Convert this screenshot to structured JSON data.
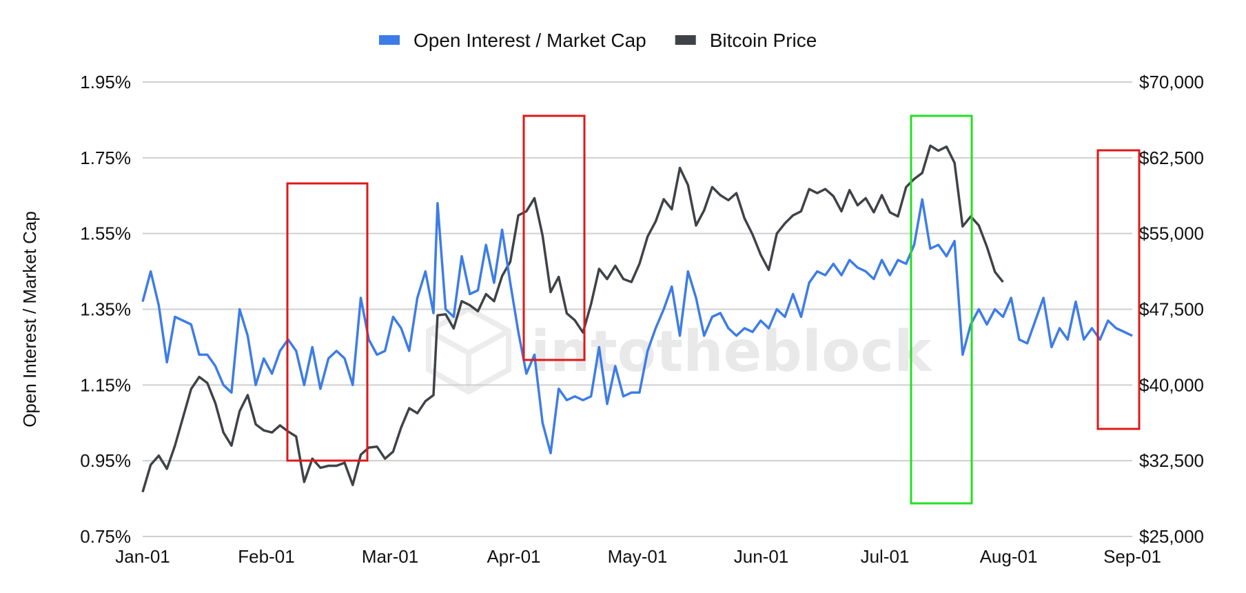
{
  "chart_data": {
    "type": "line",
    "title": "",
    "xlabel": "",
    "ylabel": "Open Interest / Market Cap",
    "watermark": "intotheblock",
    "x_ticks": [
      "Jan-01",
      "Feb-01",
      "Mar-01",
      "Apr-01",
      "May-01",
      "Jun-01",
      "Jul-01",
      "Aug-01",
      "Sep-01"
    ],
    "x_range_days": [
      0,
      245
    ],
    "y_left": {
      "ticks": [
        "0.75%",
        "0.95%",
        "1.15%",
        "1.35%",
        "1.55%",
        "1.75%",
        "1.95%"
      ],
      "range": [
        0.75,
        1.95
      ]
    },
    "y_right": {
      "ticks": [
        "$25,000",
        "$32,500",
        "$40,000",
        "$47,500",
        "$55,000",
        "$62,500",
        "$70,000"
      ],
      "range": [
        25000,
        70000
      ]
    },
    "grid": true,
    "legend_position": "top-center",
    "series": [
      {
        "name": "Open Interest / Market Cap",
        "axis": "left",
        "color": "#3d7ce8",
        "points": [
          [
            0,
            1.37
          ],
          [
            2,
            1.45
          ],
          [
            4,
            1.36
          ],
          [
            6,
            1.21
          ],
          [
            8,
            1.33
          ],
          [
            10,
            1.32
          ],
          [
            12,
            1.31
          ],
          [
            14,
            1.23
          ],
          [
            16,
            1.23
          ],
          [
            18,
            1.2
          ],
          [
            20,
            1.15
          ],
          [
            22,
            1.13
          ],
          [
            24,
            1.35
          ],
          [
            26,
            1.28
          ],
          [
            28,
            1.15
          ],
          [
            30,
            1.22
          ],
          [
            32,
            1.18
          ],
          [
            34,
            1.24
          ],
          [
            36,
            1.27
          ],
          [
            38,
            1.24
          ],
          [
            40,
            1.15
          ],
          [
            42,
            1.25
          ],
          [
            44,
            1.14
          ],
          [
            46,
            1.22
          ],
          [
            48,
            1.24
          ],
          [
            50,
            1.22
          ],
          [
            52,
            1.15
          ],
          [
            54,
            1.38
          ],
          [
            56,
            1.27
          ],
          [
            58,
            1.23
          ],
          [
            60,
            1.24
          ],
          [
            62,
            1.33
          ],
          [
            64,
            1.3
          ],
          [
            66,
            1.24
          ],
          [
            68,
            1.38
          ],
          [
            70,
            1.45
          ],
          [
            72,
            1.34
          ],
          [
            73,
            1.63
          ],
          [
            75,
            1.35
          ],
          [
            77,
            1.33
          ],
          [
            79,
            1.49
          ],
          [
            81,
            1.39
          ],
          [
            83,
            1.4
          ],
          [
            85,
            1.52
          ],
          [
            87,
            1.42
          ],
          [
            89,
            1.56
          ],
          [
            91,
            1.42
          ],
          [
            93,
            1.29
          ],
          [
            95,
            1.18
          ],
          [
            97,
            1.23
          ],
          [
            99,
            1.05
          ],
          [
            101,
            0.97
          ],
          [
            103,
            1.14
          ],
          [
            105,
            1.11
          ],
          [
            107,
            1.12
          ],
          [
            109,
            1.11
          ],
          [
            111,
            1.12
          ],
          [
            113,
            1.25
          ],
          [
            115,
            1.1
          ],
          [
            117,
            1.2
          ],
          [
            119,
            1.12
          ],
          [
            121,
            1.13
          ],
          [
            123,
            1.13
          ],
          [
            125,
            1.24
          ],
          [
            127,
            1.3
          ],
          [
            129,
            1.35
          ],
          [
            131,
            1.41
          ],
          [
            133,
            1.28
          ],
          [
            135,
            1.45
          ],
          [
            137,
            1.38
          ],
          [
            139,
            1.28
          ],
          [
            141,
            1.33
          ],
          [
            143,
            1.34
          ],
          [
            145,
            1.3
          ],
          [
            147,
            1.28
          ],
          [
            149,
            1.3
          ],
          [
            151,
            1.29
          ],
          [
            153,
            1.32
          ],
          [
            155,
            1.3
          ],
          [
            157,
            1.35
          ],
          [
            159,
            1.33
          ],
          [
            161,
            1.39
          ],
          [
            163,
            1.33
          ],
          [
            165,
            1.42
          ],
          [
            167,
            1.45
          ],
          [
            169,
            1.44
          ],
          [
            171,
            1.47
          ],
          [
            173,
            1.44
          ],
          [
            175,
            1.48
          ],
          [
            177,
            1.46
          ],
          [
            179,
            1.45
          ],
          [
            181,
            1.43
          ],
          [
            183,
            1.48
          ],
          [
            185,
            1.44
          ],
          [
            187,
            1.48
          ],
          [
            189,
            1.47
          ],
          [
            191,
            1.52
          ],
          [
            193,
            1.64
          ],
          [
            195,
            1.51
          ],
          [
            197,
            1.52
          ],
          [
            199,
            1.49
          ],
          [
            201,
            1.53
          ],
          [
            203,
            1.23
          ],
          [
            205,
            1.31
          ],
          [
            207,
            1.35
          ],
          [
            209,
            1.31
          ],
          [
            211,
            1.35
          ],
          [
            213,
            1.33
          ],
          [
            215,
            1.38
          ],
          [
            217,
            1.27
          ],
          [
            219,
            1.26
          ],
          [
            221,
            1.32
          ],
          [
            223,
            1.38
          ],
          [
            225,
            1.25
          ],
          [
            227,
            1.3
          ],
          [
            229,
            1.27
          ],
          [
            231,
            1.37
          ],
          [
            233,
            1.27
          ],
          [
            235,
            1.3
          ],
          [
            237,
            1.27
          ],
          [
            239,
            1.32
          ],
          [
            241,
            1.3
          ],
          [
            243,
            1.29
          ],
          [
            245,
            1.28
          ]
        ]
      },
      {
        "name": "Bitcoin Price",
        "axis": "right",
        "color": "#3f4247",
        "points": [
          [
            0,
            29400
          ],
          [
            2,
            32100
          ],
          [
            4,
            33000
          ],
          [
            6,
            31700
          ],
          [
            8,
            34000
          ],
          [
            10,
            36800
          ],
          [
            12,
            39600
          ],
          [
            14,
            40800
          ],
          [
            16,
            40200
          ],
          [
            18,
            38200
          ],
          [
            20,
            35300
          ],
          [
            22,
            34000
          ],
          [
            24,
            37400
          ],
          [
            26,
            39000
          ],
          [
            28,
            36100
          ],
          [
            30,
            35500
          ],
          [
            32,
            35300
          ],
          [
            34,
            36000
          ],
          [
            36,
            35400
          ],
          [
            38,
            34900
          ],
          [
            40,
            30400
          ],
          [
            42,
            32700
          ],
          [
            44,
            31800
          ],
          [
            46,
            32000
          ],
          [
            48,
            32000
          ],
          [
            50,
            32300
          ],
          [
            52,
            30100
          ],
          [
            54,
            33100
          ],
          [
            56,
            33800
          ],
          [
            58,
            33900
          ],
          [
            60,
            32700
          ],
          [
            62,
            33400
          ],
          [
            64,
            35800
          ],
          [
            66,
            37700
          ],
          [
            68,
            37200
          ],
          [
            70,
            38400
          ],
          [
            72,
            39000
          ],
          [
            73,
            46900
          ],
          [
            75,
            47000
          ],
          [
            77,
            45600
          ],
          [
            79,
            48300
          ],
          [
            81,
            47900
          ],
          [
            83,
            47300
          ],
          [
            85,
            49000
          ],
          [
            87,
            48300
          ],
          [
            89,
            50800
          ],
          [
            91,
            52200
          ],
          [
            93,
            56800
          ],
          [
            95,
            57200
          ],
          [
            97,
            58500
          ],
          [
            99,
            54800
          ],
          [
            101,
            49200
          ],
          [
            103,
            50700
          ],
          [
            105,
            47100
          ],
          [
            107,
            46400
          ],
          [
            109,
            45200
          ],
          [
            111,
            48000
          ],
          [
            113,
            51500
          ],
          [
            115,
            50500
          ],
          [
            117,
            51800
          ],
          [
            119,
            50500
          ],
          [
            121,
            50200
          ],
          [
            123,
            52000
          ],
          [
            125,
            54700
          ],
          [
            127,
            56200
          ],
          [
            129,
            58400
          ],
          [
            131,
            57400
          ],
          [
            133,
            61500
          ],
          [
            135,
            59800
          ],
          [
            137,
            55800
          ],
          [
            139,
            57300
          ],
          [
            141,
            59600
          ],
          [
            143,
            58800
          ],
          [
            145,
            58300
          ],
          [
            147,
            59000
          ],
          [
            149,
            56500
          ],
          [
            151,
            54900
          ],
          [
            153,
            52900
          ],
          [
            155,
            51400
          ],
          [
            157,
            55000
          ],
          [
            159,
            56000
          ],
          [
            161,
            56800
          ],
          [
            163,
            57200
          ],
          [
            165,
            59400
          ],
          [
            167,
            59000
          ],
          [
            169,
            59400
          ],
          [
            171,
            58700
          ],
          [
            173,
            57200
          ],
          [
            175,
            59300
          ],
          [
            177,
            57800
          ],
          [
            179,
            58500
          ],
          [
            181,
            57100
          ],
          [
            183,
            58800
          ],
          [
            185,
            57100
          ],
          [
            187,
            56700
          ],
          [
            189,
            59600
          ],
          [
            191,
            60400
          ],
          [
            193,
            61000
          ],
          [
            195,
            63700
          ],
          [
            197,
            63200
          ],
          [
            199,
            63600
          ],
          [
            201,
            62000
          ],
          [
            203,
            55700
          ],
          [
            205,
            56700
          ],
          [
            207,
            55800
          ],
          [
            209,
            53700
          ],
          [
            211,
            51200
          ],
          [
            213,
            50200
          ]
        ]
      }
    ]
  }
}
